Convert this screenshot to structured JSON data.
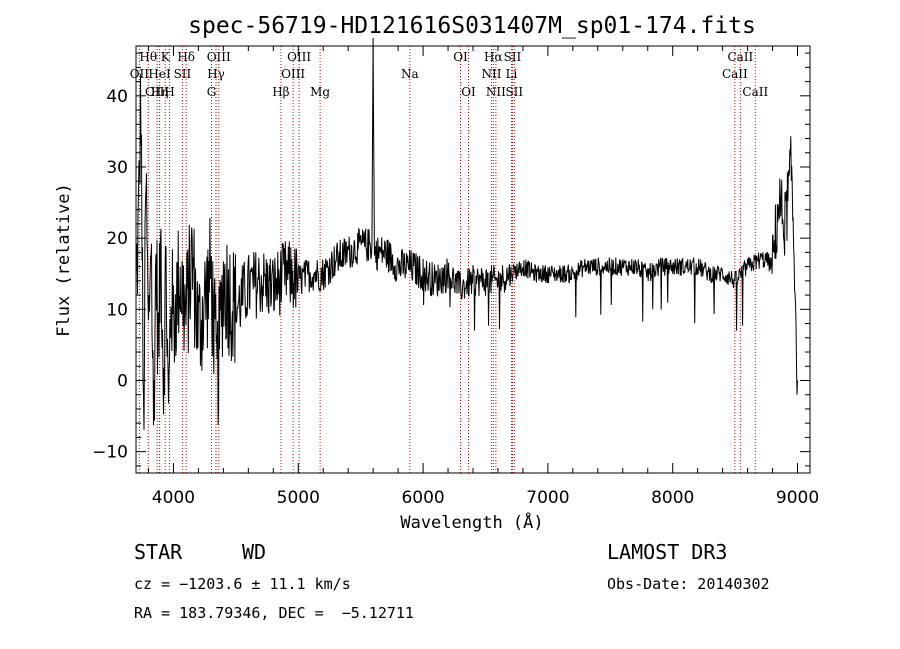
{
  "chart_data": {
    "type": "line",
    "title": "spec-56719-HD121616S031407M_sp01-174.fits",
    "xlabel": "Wavelength (Å)",
    "ylabel": "Flux (relative)",
    "xlim": [
      3700,
      9100
    ],
    "ylim": [
      -13,
      47
    ],
    "xticks": [
      4000,
      5000,
      6000,
      7000,
      8000,
      9000
    ],
    "yticks": [
      -10,
      0,
      10,
      20,
      30,
      40
    ],
    "series": [
      {
        "name": "flux",
        "anchors": [
          [
            3700,
            12
          ],
          [
            3720,
            22
          ],
          [
            3740,
            40
          ],
          [
            3760,
            -8
          ],
          [
            3780,
            28
          ],
          [
            3800,
            5
          ],
          [
            3820,
            22
          ],
          [
            3840,
            -7
          ],
          [
            3860,
            18
          ],
          [
            3880,
            4
          ],
          [
            3900,
            20
          ],
          [
            3920,
            0
          ],
          [
            3940,
            17
          ],
          [
            3960,
            -6
          ],
          [
            3980,
            13
          ],
          [
            4000,
            8
          ],
          [
            4050,
            15
          ],
          [
            4100,
            9
          ],
          [
            4150,
            17
          ],
          [
            4200,
            7
          ],
          [
            4300,
            15
          ],
          [
            4350,
            0
          ],
          [
            4400,
            14
          ],
          [
            4500,
            10
          ],
          [
            4600,
            13
          ],
          [
            4700,
            14
          ],
          [
            4800,
            13
          ],
          [
            4900,
            15
          ],
          [
            5000,
            14
          ],
          [
            5100,
            15
          ],
          [
            5200,
            15
          ],
          [
            5300,
            17
          ],
          [
            5400,
            18
          ],
          [
            5500,
            19
          ],
          [
            5590,
            19
          ],
          [
            5600,
            47
          ],
          [
            5610,
            18
          ],
          [
            5700,
            18
          ],
          [
            5800,
            16
          ],
          [
            5900,
            16
          ],
          [
            6000,
            15
          ],
          [
            6100,
            14
          ],
          [
            6200,
            15
          ],
          [
            6300,
            13
          ],
          [
            6400,
            14
          ],
          [
            6500,
            14
          ],
          [
            6600,
            14
          ],
          [
            6700,
            15
          ],
          [
            6800,
            16
          ],
          [
            6900,
            15
          ],
          [
            7000,
            15
          ],
          [
            7100,
            15
          ],
          [
            7200,
            15
          ],
          [
            7300,
            16
          ],
          [
            7400,
            16
          ],
          [
            7500,
            16
          ],
          [
            7600,
            16
          ],
          [
            7700,
            16
          ],
          [
            7800,
            15
          ],
          [
            7900,
            16
          ],
          [
            8000,
            16
          ],
          [
            8100,
            16
          ],
          [
            8200,
            16
          ],
          [
            8300,
            15
          ],
          [
            8400,
            15
          ],
          [
            8500,
            14
          ],
          [
            8600,
            16
          ],
          [
            8700,
            17
          ],
          [
            8750,
            17
          ],
          [
            8800,
            16
          ],
          [
            8850,
            25
          ],
          [
            8900,
            22
          ],
          [
            8950,
            30
          ],
          [
            8980,
            14
          ],
          [
            9000,
            0
          ]
        ]
      }
    ],
    "line_markers": [
      {
        "label": "OII",
        "wavelength": 3727,
        "row": 1
      },
      {
        "label": "Hθ",
        "wavelength": 3798,
        "row": 0
      },
      {
        "label": "OIII",
        "wavelength": 3869,
        "row": 2
      },
      {
        "label": "Hη",
        "wavelength": 3889,
        "row": 2
      },
      {
        "label": "HeI",
        "wavelength": 3889,
        "row": 1
      },
      {
        "label": "K",
        "wavelength": 3934,
        "row": 0
      },
      {
        "label": "H",
        "wavelength": 3969,
        "row": 2
      },
      {
        "label": "SII",
        "wavelength": 4072,
        "row": 1
      },
      {
        "label": "Hδ",
        "wavelength": 4102,
        "row": 0
      },
      {
        "label": "G",
        "wavelength": 4305,
        "row": 2
      },
      {
        "label": "Hγ",
        "wavelength": 4341,
        "row": 1
      },
      {
        "label": "OIII",
        "wavelength": 4363,
        "row": 0
      },
      {
        "label": "Hβ",
        "wavelength": 4861,
        "row": 2
      },
      {
        "label": "OIII",
        "wavelength": 4959,
        "row": 1
      },
      {
        "label": "OIII",
        "wavelength": 5007,
        "row": 0
      },
      {
        "label": "Mg",
        "wavelength": 5175,
        "row": 2
      },
      {
        "label": "Na",
        "wavelength": 5894,
        "row": 1
      },
      {
        "label": "OI",
        "wavelength": 6300,
        "row": 0
      },
      {
        "label": "OI",
        "wavelength": 6364,
        "row": 2
      },
      {
        "label": "NII",
        "wavelength": 6548,
        "row": 1
      },
      {
        "label": "Hα",
        "wavelength": 6563,
        "row": 0
      },
      {
        "label": "NII",
        "wavelength": 6583,
        "row": 2
      },
      {
        "label": "Li",
        "wavelength": 6708,
        "row": 1
      },
      {
        "label": "SII",
        "wavelength": 6716,
        "row": 0
      },
      {
        "label": "SII",
        "wavelength": 6731,
        "row": 2
      },
      {
        "label": "CaII",
        "wavelength": 8498,
        "row": 1
      },
      {
        "label": "CaII",
        "wavelength": 8542,
        "row": 0
      },
      {
        "label": "CaII",
        "wavelength": 8662,
        "row": 2
      }
    ]
  },
  "info": {
    "class": "STAR",
    "subclass": "WD",
    "survey": "LAMOST DR3",
    "redshift": "cz = −1203.6 ± 11.1 km/s",
    "obs_date": "Obs-Date: 20140302",
    "coords": "RA = 183.79346, DEC =  −5.12711"
  },
  "colors": {
    "marker_line": "#cc0000",
    "spectrum": "#000000",
    "axes": "#000000"
  }
}
